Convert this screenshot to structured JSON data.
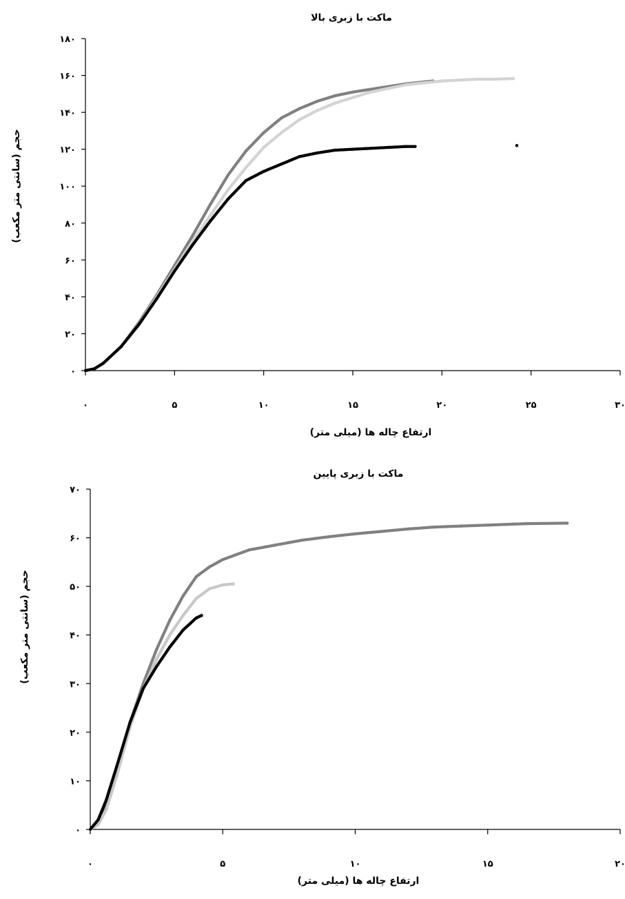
{
  "chart_data": [
    {
      "type": "scatter",
      "title": "ماکت با زبری بالا",
      "xlabel": "ارتفاع چاله ها (میلی متر)",
      "ylabel": "حجم (سانتی متر مکعب)",
      "xlim": [
        0,
        30
      ],
      "ylim": [
        0,
        180
      ],
      "x_ticks": [
        "۰",
        "۵",
        "۱۰",
        "۱۵",
        "۲۰",
        "۲۵",
        "۳۰"
      ],
      "x_tick_values": [
        0,
        5,
        10,
        15,
        20,
        25,
        30
      ],
      "y_ticks": [
        "۰",
        "۲۰",
        "۴۰",
        "۶۰",
        "۸۰",
        "۱۰۰",
        "۱۲۰",
        "۱۴۰",
        "۱۶۰",
        "۱۸۰"
      ],
      "y_tick_values": [
        0,
        20,
        40,
        60,
        80,
        100,
        120,
        140,
        160,
        180
      ],
      "grid": false,
      "legend": "none",
      "series": [
        {
          "color": "#808080",
          "points": [
            [
              0,
              0
            ],
            [
              0.5,
              1
            ],
            [
              1,
              4
            ],
            [
              2,
              13
            ],
            [
              3,
              26
            ],
            [
              4,
              41
            ],
            [
              5,
              57
            ],
            [
              6,
              73
            ],
            [
              7,
              90
            ],
            [
              8,
              106
            ],
            [
              9,
              119
            ],
            [
              10,
              129
            ],
            [
              11,
              137
            ],
            [
              12,
              142
            ],
            [
              13,
              146
            ],
            [
              14,
              149
            ],
            [
              15,
              151
            ],
            [
              16,
              152.5
            ],
            [
              17,
              154
            ],
            [
              18,
              155.5
            ],
            [
              19,
              156.5
            ],
            [
              19.5,
              157
            ]
          ]
        },
        {
          "color": "#d3d3d3",
          "points": [
            [
              0,
              0
            ],
            [
              0.5,
              1
            ],
            [
              1,
              4
            ],
            [
              2,
              13
            ],
            [
              3,
              25
            ],
            [
              4,
              40
            ],
            [
              5,
              55
            ],
            [
              6,
              70
            ],
            [
              7,
              84
            ],
            [
              8,
              98
            ],
            [
              9,
              110
            ],
            [
              10,
              121
            ],
            [
              11,
              129
            ],
            [
              12,
              136
            ],
            [
              13,
              141
            ],
            [
              14,
              145
            ],
            [
              15,
              148
            ],
            [
              16,
              151
            ],
            [
              17,
              153
            ],
            [
              18,
              155
            ],
            [
              19,
              156
            ],
            [
              20,
              157
            ],
            [
              21,
              157.5
            ],
            [
              22,
              158
            ],
            [
              23,
              158
            ],
            [
              24,
              158.3
            ]
          ]
        },
        {
          "color": "#000000",
          "points": [
            [
              0,
              0
            ],
            [
              0.5,
              1
            ],
            [
              1,
              4
            ],
            [
              2,
              13
            ],
            [
              3,
              25
            ],
            [
              4,
              39
            ],
            [
              5,
              54
            ],
            [
              6,
              68
            ],
            [
              7,
              81
            ],
            [
              8,
              93
            ],
            [
              9,
              103
            ],
            [
              10,
              108
            ],
            [
              11,
              112
            ],
            [
              12,
              116
            ],
            [
              13,
              118
            ],
            [
              14,
              119.5
            ],
            [
              15,
              120
            ],
            [
              16,
              120.5
            ],
            [
              17,
              121
            ],
            [
              18,
              121.5
            ],
            [
              18.5,
              121.5
            ],
            [
              24.2,
              122
            ]
          ]
        }
      ]
    },
    {
      "type": "scatter",
      "title": "ماکت با زبری پایین",
      "xlabel": "ارتفاع چاله ها (میلی متر)",
      "ylabel": "حجم (سانتی متر مکعب)",
      "xlim": [
        0,
        20
      ],
      "ylim": [
        0,
        70
      ],
      "x_ticks": [
        "۰",
        "۵",
        "۱۰",
        "۱۵",
        "۲۰"
      ],
      "x_tick_values": [
        0,
        5,
        10,
        15,
        20
      ],
      "y_ticks": [
        "۰",
        "۱۰",
        "۲۰",
        "۳۰",
        "۴۰",
        "۵۰",
        "۶۰",
        "۷۰"
      ],
      "y_tick_values": [
        0,
        10,
        20,
        30,
        40,
        50,
        60,
        70
      ],
      "grid": false,
      "legend": "none",
      "series": [
        {
          "color": "#808080",
          "points": [
            [
              0,
              0
            ],
            [
              0.3,
              1.5
            ],
            [
              0.6,
              5
            ],
            [
              1,
              12
            ],
            [
              1.5,
              22
            ],
            [
              2,
              30
            ],
            [
              2.5,
              37
            ],
            [
              3,
              43
            ],
            [
              3.5,
              48
            ],
            [
              4,
              52
            ],
            [
              4.5,
              54
            ],
            [
              5,
              55.5
            ],
            [
              5.5,
              56.5
            ],
            [
              6,
              57.5
            ],
            [
              7,
              58.5
            ],
            [
              8,
              59.5
            ],
            [
              9,
              60.2
            ],
            [
              10,
              60.8
            ],
            [
              11,
              61.3
            ],
            [
              12,
              61.8
            ],
            [
              13,
              62.2
            ],
            [
              14,
              62.4
            ],
            [
              15,
              62.6
            ],
            [
              16,
              62.8
            ],
            [
              16.5,
              62.9
            ],
            [
              18,
              63.0
            ]
          ]
        },
        {
          "color": "#c8c8c8",
          "points": [
            [
              0,
              0
            ],
            [
              0.3,
              1
            ],
            [
              0.6,
              4
            ],
            [
              1,
              11
            ],
            [
              1.5,
              21
            ],
            [
              2,
              29
            ],
            [
              2.5,
              35
            ],
            [
              3,
              40
            ],
            [
              3.5,
              44
            ],
            [
              4,
              47.5
            ],
            [
              4.5,
              49.5
            ],
            [
              5,
              50.3
            ],
            [
              5.4,
              50.5
            ]
          ]
        },
        {
          "color": "#000000",
          "points": [
            [
              0,
              0
            ],
            [
              0.3,
              2
            ],
            [
              0.6,
              6
            ],
            [
              1,
              13
            ],
            [
              1.5,
              22
            ],
            [
              2,
              29
            ],
            [
              2.5,
              33.5
            ],
            [
              3,
              37.5
            ],
            [
              3.5,
              41
            ],
            [
              4,
              43.5
            ],
            [
              4.2,
              44
            ]
          ]
        }
      ]
    }
  ]
}
